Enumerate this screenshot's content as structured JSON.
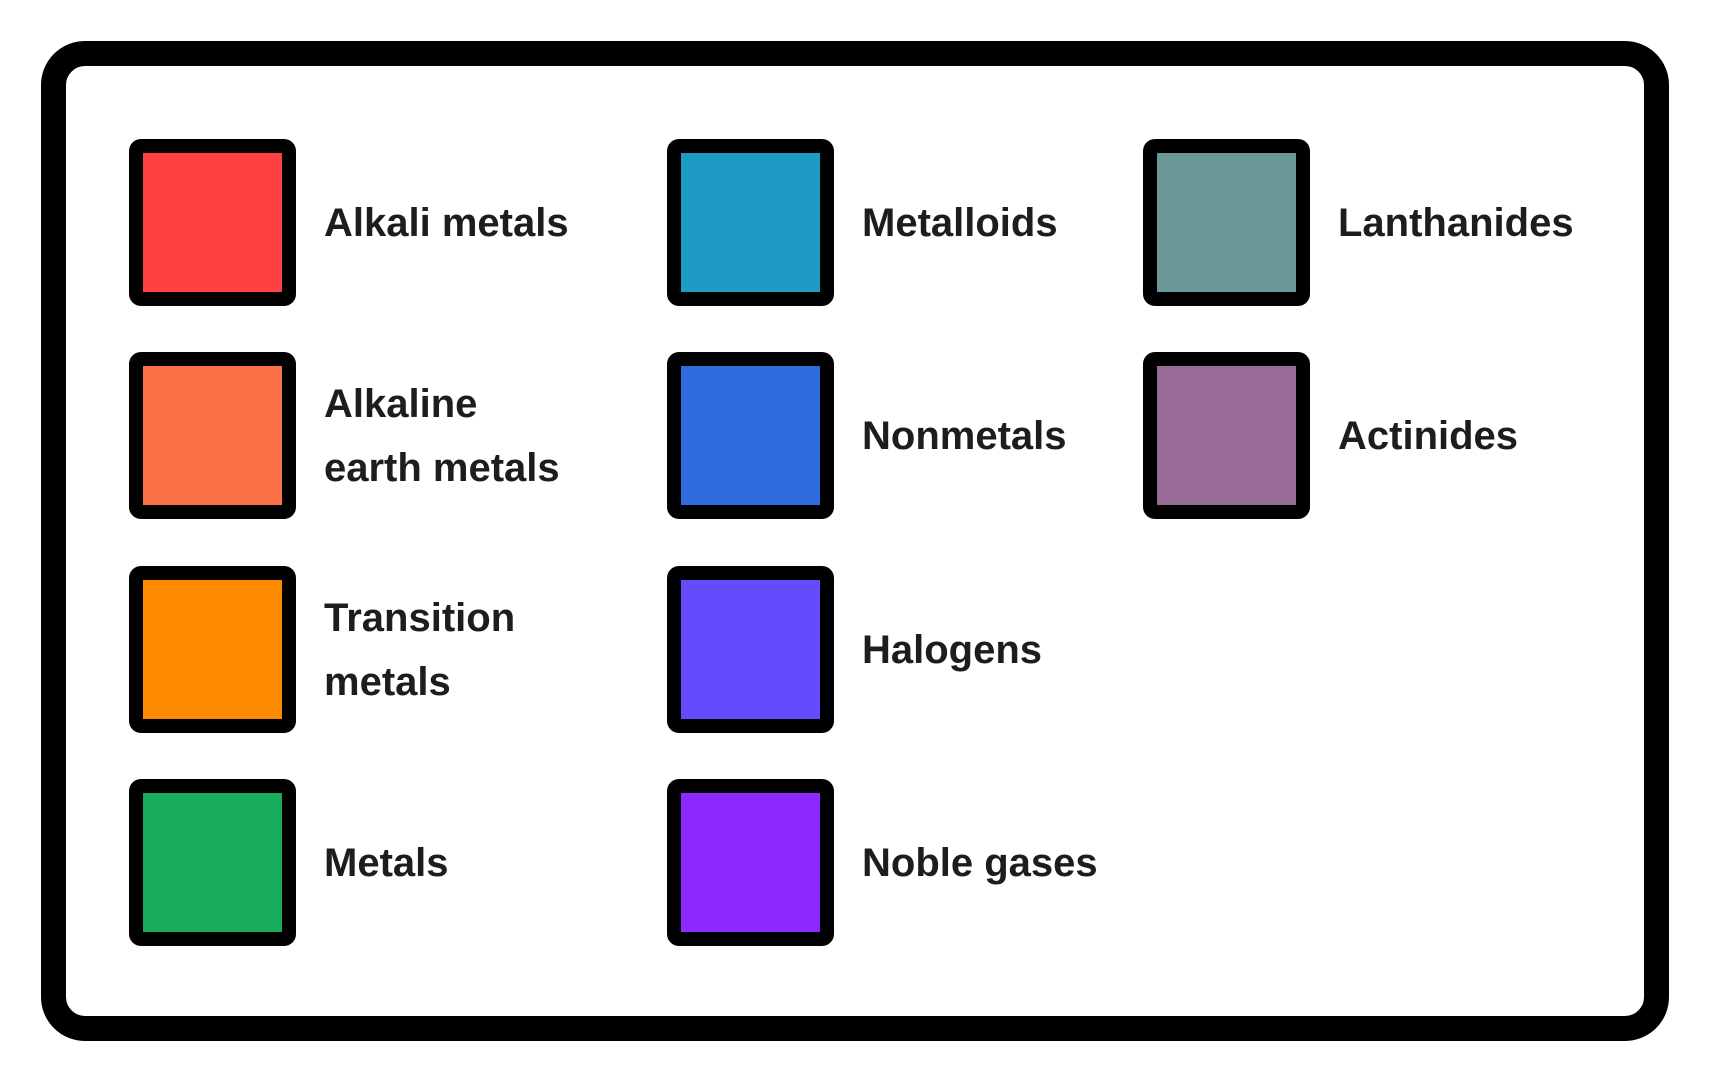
{
  "legend": {
    "items": [
      {
        "label_lines": [
          "Alkali metals"
        ],
        "color": "#ff4141"
      },
      {
        "label_lines": [
          "Alkaline",
          "earth metals"
        ],
        "color": "#fc7246"
      },
      {
        "label_lines": [
          "Transition",
          "metals"
        ],
        "color": "#fe8a00"
      },
      {
        "label_lines": [
          "Metals"
        ],
        "color": "#17ab5b"
      },
      {
        "label_lines": [
          "Metalloids"
        ],
        "color": "#1d9bc4"
      },
      {
        "label_lines": [
          "Nonmetals"
        ],
        "color": "#2f6ade"
      },
      {
        "label_lines": [
          "Halogens"
        ],
        "color": "#644bfc"
      },
      {
        "label_lines": [
          "Noble gases"
        ],
        "color": "#8d28ff"
      },
      {
        "label_lines": [
          "Lanthanides"
        ],
        "color": "#6a9798"
      },
      {
        "label_lines": [
          "Actinides"
        ],
        "color": "#986b96"
      }
    ]
  }
}
